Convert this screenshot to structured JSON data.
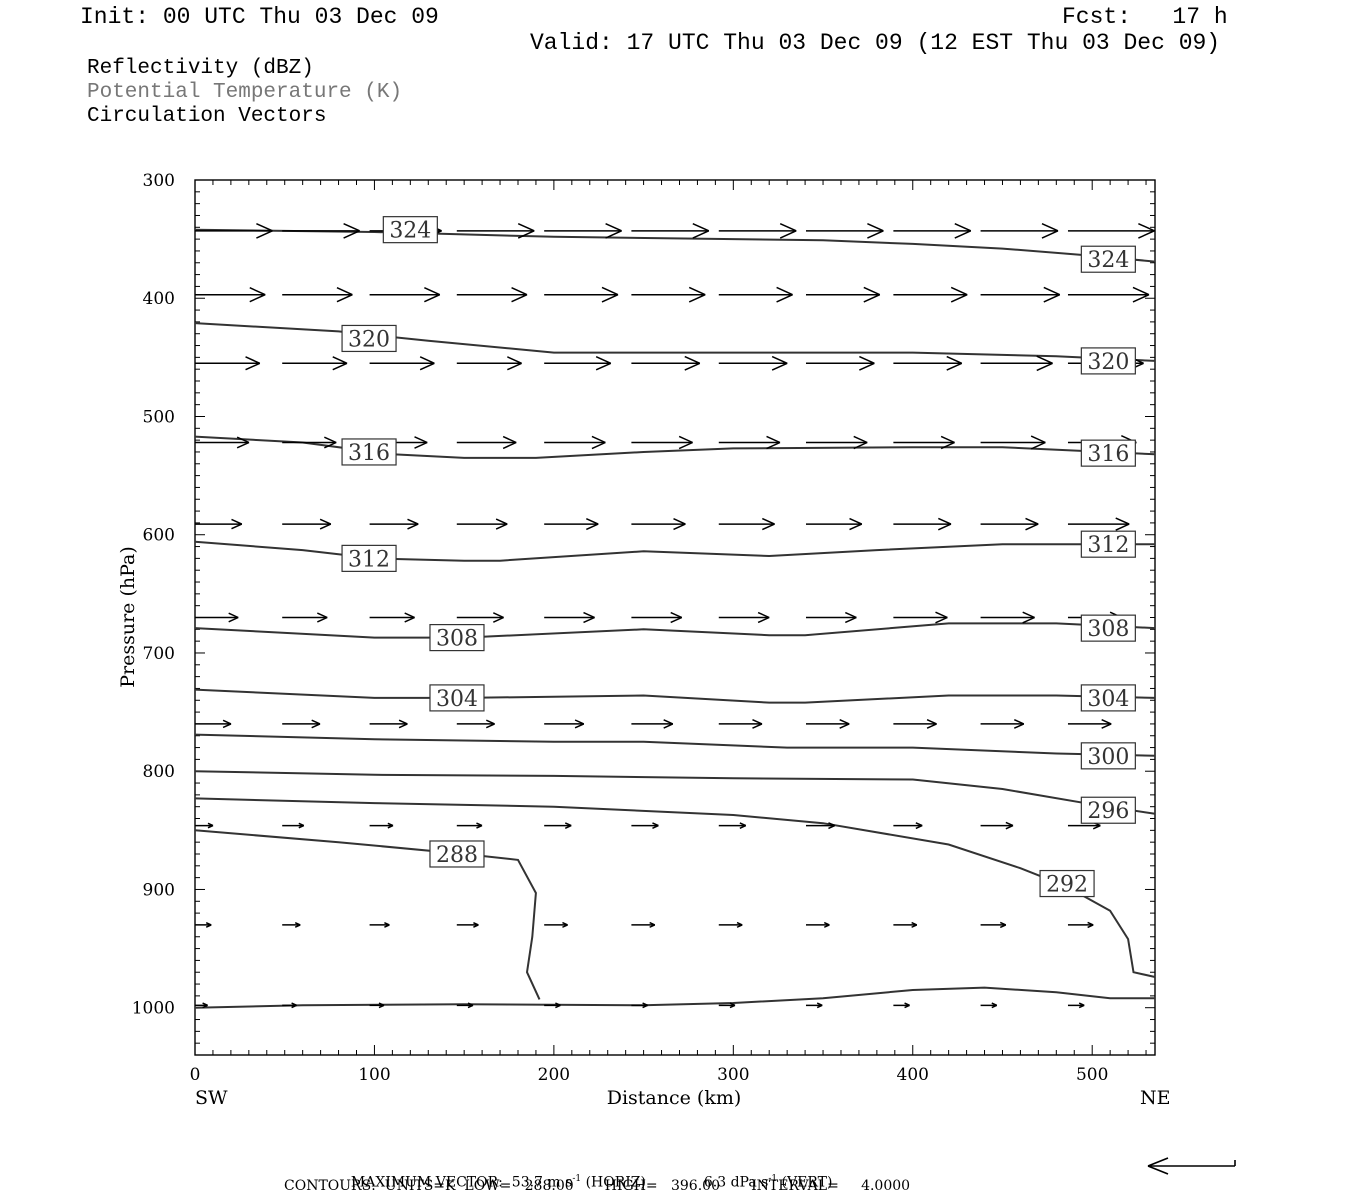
{
  "header": {
    "init": "Init: 00 UTC Thu 03 Dec 09",
    "fcst": "Fcst:   17 h",
    "valid": "Valid: 17 UTC Thu 03 Dec 09 (12 EST Thu 03 Dec 09)"
  },
  "legend": {
    "field1": "Reflectivity (dBZ)",
    "field2": "Potential Temperature (K)",
    "field3": "Circulation Vectors",
    "field2_color": "#777777"
  },
  "footer": {
    "max_vector_label": "MAXIMUM VECTOR:",
    "max_vector_horiz": "53.7 m s",
    "horiz_tag": "(HORIZ)",
    "max_vector_vert": "6.3 dPa s",
    "vert_tag": "(VERT)",
    "exponent": "-1",
    "contours": "CONTOURS:  UNITS=K  LOW=   288.00       HIGH=   396.00       INTERVAL=     4.0000"
  },
  "chart_data": {
    "type": "line",
    "title": "",
    "xlabel": "Distance (km)",
    "ylabel": "Pressure (hPa)",
    "xlim": [
      0,
      535
    ],
    "ylim": [
      1040,
      300
    ],
    "x_ticks": [
      0,
      100,
      200,
      300,
      400,
      500
    ],
    "y_ticks": [
      300,
      400,
      500,
      600,
      700,
      800,
      900,
      1000
    ],
    "x_end_left": "SW",
    "x_end_right": "NE",
    "isentropes": [
      {
        "theta": 324,
        "x": [
          0,
          100,
          200,
          300,
          350,
          400,
          450,
          500,
          535
        ],
        "p": [
          342,
          344,
          348,
          350,
          351,
          354,
          358,
          364,
          369
        ],
        "labels": [
          {
            "x": 120,
            "p": 342
          },
          {
            "x": 509,
            "p": 367
          }
        ]
      },
      {
        "theta": 320,
        "x": [
          0,
          80,
          130,
          200,
          300,
          400,
          480,
          535
        ],
        "p": [
          421,
          428,
          436,
          446,
          446,
          446,
          449,
          453
        ],
        "labels": [
          {
            "x": 97,
            "p": 434
          },
          {
            "x": 509,
            "p": 453
          }
        ]
      },
      {
        "theta": 316,
        "x": [
          0,
          60,
          110,
          150,
          190,
          250,
          300,
          400,
          450,
          535
        ],
        "p": [
          517,
          522,
          532,
          535,
          535,
          530,
          527,
          526,
          526,
          532
        ],
        "labels": [
          {
            "x": 97,
            "p": 530
          },
          {
            "x": 509,
            "p": 531
          }
        ]
      },
      {
        "theta": 312,
        "x": [
          0,
          60,
          100,
          150,
          170,
          250,
          320,
          380,
          450,
          535
        ],
        "p": [
          606,
          613,
          620,
          622,
          622,
          614,
          618,
          613,
          608,
          608
        ],
        "labels": [
          {
            "x": 97,
            "p": 620
          },
          {
            "x": 509,
            "p": 608
          }
        ]
      },
      {
        "theta": 308,
        "x": [
          0,
          100,
          150,
          250,
          320,
          340,
          420,
          480,
          535
        ],
        "p": [
          679,
          687,
          687,
          680,
          685,
          685,
          675,
          675,
          679
        ],
        "labels": [
          {
            "x": 146,
            "p": 687
          },
          {
            "x": 509,
            "p": 679
          }
        ]
      },
      {
        "theta": 304,
        "x": [
          0,
          100,
          150,
          250,
          320,
          340,
          420,
          480,
          535
        ],
        "p": [
          731,
          738,
          738,
          736,
          742,
          742,
          736,
          736,
          738
        ],
        "labels": [
          {
            "x": 146,
            "p": 738
          },
          {
            "x": 509,
            "p": 738
          }
        ]
      },
      {
        "theta": 300,
        "x": [
          0,
          100,
          200,
          250,
          330,
          400,
          480,
          535
        ],
        "p": [
          769,
          773,
          775,
          775,
          780,
          780,
          785,
          787
        ],
        "labels": [
          {
            "x": 509,
            "p": 787
          }
        ]
      },
      {
        "theta": 296,
        "x": [
          0,
          100,
          200,
          300,
          400,
          450,
          500,
          535
        ],
        "p": [
          800,
          803,
          804,
          806,
          807,
          815,
          828,
          836
        ],
        "labels": [
          {
            "x": 509,
            "p": 833
          }
        ]
      },
      {
        "theta": 292,
        "x": [
          0,
          100,
          200,
          300,
          350,
          420,
          460,
          485,
          510,
          520,
          523,
          535
        ],
        "p": [
          823,
          827,
          830,
          837,
          844,
          862,
          882,
          897,
          918,
          942,
          970,
          974
        ],
        "labels": [
          {
            "x": 486,
            "p": 895
          }
        ]
      },
      {
        "theta": 288,
        "x": [
          0,
          80,
          150,
          180,
          190,
          188,
          185,
          192
        ],
        "p": [
          850,
          860,
          870,
          875,
          903,
          940,
          970,
          993
        ],
        "labels": [
          {
            "x": 146,
            "p": 870
          }
        ]
      },
      {
        "theta": null,
        "x": [
          0,
          60,
          150,
          250,
          300,
          350,
          400,
          440,
          480,
          510,
          535
        ],
        "p": [
          1000,
          998,
          997,
          998,
          996,
          992,
          985,
          983,
          987,
          992,
          992
        ],
        "labels": []
      }
    ],
    "vectors": {
      "x": [
        0,
        48.6,
        97.3,
        145.9,
        194.6,
        243.2,
        291.9,
        340.5,
        389.2,
        437.8,
        486.5
      ],
      "rows": [
        {
          "p": 343,
          "u": [
            43,
            43,
            40,
            43,
            43,
            43,
            43,
            43,
            43,
            43,
            48
          ],
          "w": [
            0,
            0,
            0,
            0,
            0,
            0,
            0,
            0,
            0,
            0,
            0
          ]
        },
        {
          "p": 397,
          "u": [
            39,
            39,
            39,
            39,
            41,
            41,
            41,
            41,
            41,
            44,
            45
          ],
          "w": [
            0,
            0,
            0,
            0,
            0,
            0,
            0,
            0,
            0,
            0,
            0
          ]
        },
        {
          "p": 455,
          "u": [
            36,
            36,
            36,
            36,
            37,
            38,
            38,
            38,
            38,
            40,
            42
          ],
          "w": [
            0,
            0,
            0,
            0,
            0,
            0,
            0,
            0,
            0,
            0,
            0
          ]
        },
        {
          "p": 522,
          "u": [
            30,
            30,
            32,
            33,
            34,
            34,
            34,
            34,
            34,
            36,
            38
          ],
          "w": [
            0,
            0,
            0,
            0,
            0,
            0,
            0,
            0,
            0,
            0,
            0
          ]
        },
        {
          "p": 591,
          "u": [
            26,
            27,
            27,
            28,
            30,
            30,
            31,
            31,
            32,
            32,
            34
          ],
          "w": [
            0,
            0,
            0,
            0,
            0,
            0,
            0,
            0,
            0,
            0,
            0
          ]
        },
        {
          "p": 670,
          "u": [
            24,
            25,
            25,
            26,
            28,
            28,
            28,
            28,
            30,
            30,
            30
          ],
          "w": [
            0,
            0,
            0,
            0,
            0,
            0,
            0,
            0,
            0,
            0,
            0
          ]
        },
        {
          "p": 760,
          "u": [
            20,
            21,
            21,
            21,
            22,
            23,
            24,
            24,
            24,
            24,
            24
          ],
          "w": [
            0,
            0,
            0,
            0,
            0,
            0,
            0,
            0,
            0,
            0,
            0
          ]
        },
        {
          "p": 846,
          "u": [
            10,
            12,
            13,
            14,
            15,
            15,
            15,
            16,
            16,
            18,
            18
          ],
          "w": [
            0,
            0,
            0,
            0,
            0,
            0,
            0,
            0,
            0,
            0,
            0
          ]
        },
        {
          "p": 930,
          "u": [
            9,
            10,
            11,
            12,
            13,
            13,
            13,
            13,
            13,
            14,
            14
          ],
          "w": [
            0,
            0,
            0,
            0,
            0,
            0,
            0,
            0,
            0,
            0,
            0
          ]
        },
        {
          "p": 998,
          "u": [
            7,
            8,
            8,
            9,
            9,
            9,
            9,
            9,
            9,
            9,
            9
          ],
          "w": [
            0,
            0,
            0,
            0,
            0,
            0,
            0,
            0,
            0,
            0,
            0
          ]
        }
      ]
    },
    "reference_vector": {
      "u": -53.7
    }
  }
}
